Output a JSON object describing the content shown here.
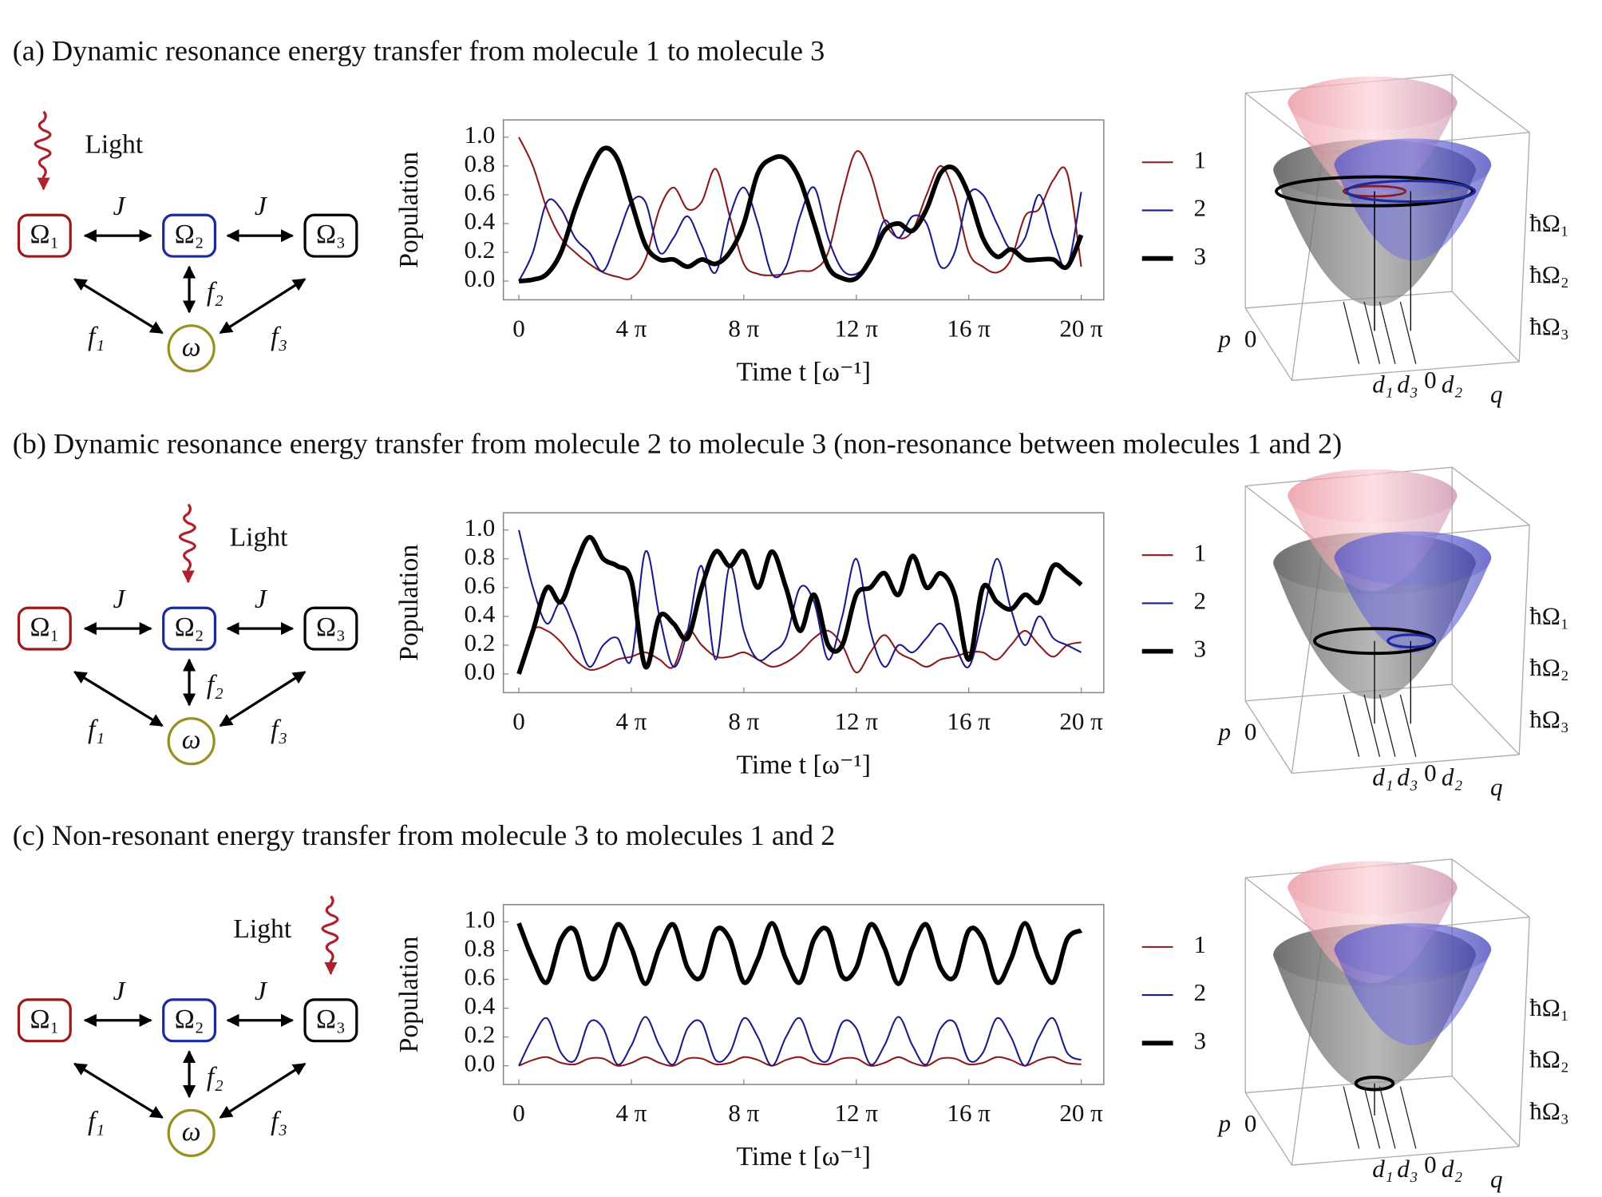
{
  "panels": [
    {
      "title": "(a) Dynamic resonance energy transfer from molecule 1 to molecule 3",
      "light": "Light",
      "nodes": [
        "Ω₁",
        "Ω₂",
        "Ω₃",
        "ω"
      ],
      "edges": [
        "J",
        "J",
        "f₁",
        "f₂",
        "f₃"
      ],
      "surface_labels": [
        "ħΩ₁",
        "ħΩ₂",
        "ħΩ₃",
        "p",
        "0",
        "d₁",
        "d₃",
        "0",
        "d₂",
        "q"
      ]
    },
    {
      "title": "(b) Dynamic resonance energy transfer from molecule 2 to molecule 3 (non-resonance between molecules 1 and 2)",
      "light": "Light",
      "nodes": [
        "Ω₁",
        "Ω₂",
        "Ω₃",
        "ω"
      ],
      "edges": [
        "J",
        "J",
        "f₁",
        "f₂",
        "f₃"
      ],
      "surface_labels": [
        "ħΩ₁",
        "ħΩ₂",
        "ħΩ₃",
        "p",
        "0",
        "d₁",
        "d₃",
        "0",
        "d₂",
        "q"
      ]
    },
    {
      "title": "(c) Non-resonant energy transfer from molecule 3 to molecules 1 and 2",
      "light": "Light",
      "nodes": [
        "Ω₁",
        "Ω₂",
        "Ω₃",
        "ω"
      ],
      "edges": [
        "J",
        "J",
        "f₁",
        "f₂",
        "f₃"
      ],
      "surface_labels": [
        "ħΩ₁",
        "ħΩ₂",
        "ħΩ₃",
        "p",
        "0",
        "d₁",
        "d₃",
        "0",
        "d₂",
        "q"
      ]
    }
  ],
  "chart_data": [
    {
      "type": "line",
      "xlabel": "Time t [ω⁻¹]",
      "ylabel": "Population",
      "x": [
        0,
        1.571,
        3.142,
        4.712,
        6.283,
        7.854,
        9.425,
        10.996,
        12.566,
        14.137,
        15.708,
        17.279,
        18.85,
        20.42,
        21.991,
        23.562,
        25.133,
        26.704,
        28.274,
        29.845,
        31.416,
        32.987,
        34.558,
        36.128,
        37.699,
        39.27,
        40.841,
        42.412,
        43.982,
        45.553,
        47.124,
        48.695,
        50.265,
        51.836,
        53.407,
        54.978,
        56.549,
        58.119,
        59.69,
        61.261,
        62.832
      ],
      "xlim": [
        -1.73,
        65.35
      ],
      "xticks": [
        0,
        {
          "value": 12.566,
          "label": "4 π"
        },
        {
          "value": 25.133,
          "label": "8 π"
        },
        {
          "value": 37.699,
          "label": "12 π"
        },
        {
          "value": 50.265,
          "label": "16 π"
        },
        {
          "value": 62.832,
          "label": "20 π"
        }
      ],
      "ylim": [
        -0.13,
        1.12
      ],
      "yticks": [
        {
          "value": 0,
          "label": "0.0"
        },
        0.2,
        0.4,
        0.6,
        0.8,
        {
          "value": 1,
          "label": "1.0"
        }
      ],
      "series": [
        {
          "name": "1",
          "color": "#8b1a1a",
          "linewidth": 1.6,
          "values": [
            1.0,
            0.8,
            0.5,
            0.3,
            0.2,
            0.12,
            0.06,
            0.03,
            0.02,
            0.15,
            0.5,
            0.65,
            0.5,
            0.55,
            0.78,
            0.45,
            0.12,
            0.05,
            0.04,
            0.05,
            0.07,
            0.08,
            0.2,
            0.6,
            0.9,
            0.75,
            0.42,
            0.3,
            0.35,
            0.6,
            0.8,
            0.6,
            0.2,
            0.1,
            0.06,
            0.15,
            0.45,
            0.5,
            0.7,
            0.75,
            0.1
          ]
        },
        {
          "name": "2",
          "color": "#1a1a8b",
          "linewidth": 1.6,
          "values": [
            0,
            0.2,
            0.55,
            0.5,
            0.3,
            0.2,
            0.07,
            0.3,
            0.55,
            0.55,
            0.2,
            0.3,
            0.45,
            0.25,
            0.06,
            0.45,
            0.65,
            0.4,
            0.05,
            0.1,
            0.45,
            0.65,
            0.3,
            0.08,
            0.05,
            0.15,
            0.42,
            0.3,
            0.45,
            0.4,
            0.1,
            0.2,
            0.6,
            0.6,
            0.4,
            0.22,
            0.3,
            0.6,
            0.3,
            0.1,
            0.62
          ]
        },
        {
          "name": "3",
          "color": "#000000",
          "linewidth": 4.5,
          "values": [
            0,
            0.01,
            0.05,
            0.2,
            0.5,
            0.75,
            0.92,
            0.85,
            0.55,
            0.25,
            0.15,
            0.15,
            0.1,
            0.15,
            0.12,
            0.2,
            0.4,
            0.75,
            0.85,
            0.85,
            0.7,
            0.4,
            0.1,
            0.02,
            0.02,
            0.15,
            0.35,
            0.4,
            0.35,
            0.5,
            0.75,
            0.78,
            0.6,
            0.3,
            0.17,
            0.22,
            0.15,
            0.15,
            0.15,
            0.1,
            0.32
          ]
        }
      ]
    },
    {
      "type": "line",
      "xlabel": "Time t [ω⁻¹]",
      "ylabel": "Population",
      "x": [
        0,
        1.571,
        3.142,
        4.712,
        6.283,
        7.854,
        9.425,
        10.996,
        12.566,
        14.137,
        15.708,
        17.279,
        18.85,
        20.42,
        21.991,
        23.562,
        25.133,
        26.704,
        28.274,
        29.845,
        31.416,
        32.987,
        34.558,
        36.128,
        37.699,
        39.27,
        40.841,
        42.412,
        43.982,
        45.553,
        47.124,
        48.695,
        50.265,
        51.836,
        53.407,
        54.978,
        56.549,
        58.119,
        59.69,
        61.261,
        62.832
      ],
      "xlim": [
        -1.73,
        65.35
      ],
      "xticks": [
        0,
        {
          "value": 12.566,
          "label": "4 π"
        },
        {
          "value": 25.133,
          "label": "8 π"
        },
        {
          "value": 37.699,
          "label": "12 π"
        },
        {
          "value": 50.265,
          "label": "16 π"
        },
        {
          "value": 62.832,
          "label": "20 π"
        }
      ],
      "ylim": [
        -0.13,
        1.12
      ],
      "yticks": [
        {
          "value": 0,
          "label": "0.0"
        },
        0.2,
        0.4,
        0.6,
        0.8,
        {
          "value": 1,
          "label": "1.0"
        }
      ],
      "series": [
        {
          "name": "1",
          "color": "#8b1a1a",
          "linewidth": 1.6,
          "values": [
            0,
            0.3,
            0.3,
            0.22,
            0.1,
            0.03,
            0.05,
            0.1,
            0.12,
            0.15,
            0.1,
            0.05,
            0.3,
            0.2,
            0.12,
            0.12,
            0.15,
            0.1,
            0.05,
            0.08,
            0.15,
            0.25,
            0.3,
            0.2,
            0.01,
            0.15,
            0.27,
            0.15,
            0.1,
            0.05,
            0.1,
            0.12,
            0.15,
            0.15,
            0.1,
            0.2,
            0.3,
            0.2,
            0.12,
            0.2,
            0.22
          ]
        },
        {
          "name": "2",
          "color": "#1a1a8b",
          "linewidth": 1.6,
          "values": [
            1.0,
            0.6,
            0.35,
            0.5,
            0.3,
            0.05,
            0.2,
            0.25,
            0.1,
            0.85,
            0.4,
            0.05,
            0.3,
            0.75,
            0.1,
            0.75,
            0.3,
            0.1,
            0.15,
            0.25,
            0.6,
            0.5,
            0.1,
            0.4,
            0.8,
            0.3,
            0.05,
            0.2,
            0.15,
            0.25,
            0.35,
            0.2,
            0.05,
            0.4,
            0.8,
            0.45,
            0.2,
            0.4,
            0.25,
            0.2,
            0.15
          ]
        },
        {
          "name": "3",
          "color": "#000000",
          "linewidth": 4.5,
          "values": [
            0,
            0.3,
            0.6,
            0.5,
            0.75,
            0.95,
            0.8,
            0.75,
            0.65,
            0.05,
            0.4,
            0.35,
            0.25,
            0.6,
            0.85,
            0.75,
            0.85,
            0.6,
            0.85,
            0.6,
            0.3,
            0.55,
            0.2,
            0.2,
            0.55,
            0.6,
            0.7,
            0.55,
            0.82,
            0.6,
            0.7,
            0.55,
            0.1,
            0.6,
            0.5,
            0.45,
            0.55,
            0.5,
            0.75,
            0.7,
            0.62
          ]
        }
      ]
    },
    {
      "type": "line",
      "xlabel": "Time t [ω⁻¹]",
      "ylabel": "Population",
      "x": [
        0,
        1.571,
        3.142,
        4.712,
        6.283,
        7.854,
        9.425,
        10.996,
        12.566,
        14.137,
        15.708,
        17.279,
        18.85,
        20.42,
        21.991,
        23.562,
        25.133,
        26.704,
        28.274,
        29.845,
        31.416,
        32.987,
        34.558,
        36.128,
        37.699,
        39.27,
        40.841,
        42.412,
        43.982,
        45.553,
        47.124,
        48.695,
        50.265,
        51.836,
        53.407,
        54.978,
        56.549,
        58.119,
        59.69,
        61.261,
        62.832
      ],
      "xlim": [
        -1.73,
        65.35
      ],
      "xticks": [
        0,
        {
          "value": 12.566,
          "label": "4 π"
        },
        {
          "value": 25.133,
          "label": "8 π"
        },
        {
          "value": 37.699,
          "label": "12 π"
        },
        {
          "value": 50.265,
          "label": "16 π"
        },
        {
          "value": 62.832,
          "label": "20 π"
        }
      ],
      "ylim": [
        -0.13,
        1.12
      ],
      "yticks": [
        {
          "value": 0,
          "label": "0.0"
        },
        0.2,
        0.4,
        0.6,
        0.8,
        {
          "value": 1,
          "label": "1.0"
        }
      ],
      "series": [
        {
          "name": "1",
          "color": "#8b1a1a",
          "linewidth": 1.6,
          "values": [
            0,
            0.04,
            0.06,
            0.02,
            0.01,
            0.05,
            0.05,
            0,
            0.02,
            0.06,
            0.02,
            0,
            0.05,
            0.05,
            0.01,
            0.02,
            0.06,
            0.04,
            0,
            0.04,
            0.06,
            0.02,
            0.01,
            0.05,
            0.05,
            0,
            0.02,
            0.06,
            0.02,
            0,
            0.05,
            0.05,
            0.01,
            0.02,
            0.06,
            0.04,
            0,
            0.04,
            0.06,
            0.02,
            0.01
          ]
        },
        {
          "name": "2",
          "color": "#1a1a8b",
          "linewidth": 1.6,
          "values": [
            0,
            0.2,
            0.33,
            0.09,
            0.04,
            0.3,
            0.26,
            0.01,
            0.14,
            0.34,
            0.14,
            0.01,
            0.26,
            0.3,
            0.04,
            0.09,
            0.33,
            0.2,
            0,
            0.2,
            0.33,
            0.09,
            0.04,
            0.3,
            0.26,
            0.01,
            0.14,
            0.34,
            0.14,
            0.01,
            0.26,
            0.3,
            0.04,
            0.09,
            0.33,
            0.2,
            0,
            0.2,
            0.33,
            0.09,
            0.04
          ]
        },
        {
          "name": "3",
          "color": "#000000",
          "linewidth": 4.5,
          "values": [
            0.99,
            0.74,
            0.58,
            0.88,
            0.94,
            0.62,
            0.68,
            0.98,
            0.82,
            0.57,
            0.82,
            0.98,
            0.68,
            0.62,
            0.94,
            0.88,
            0.58,
            0.74,
            0.99,
            0.74,
            0.58,
            0.88,
            0.94,
            0.62,
            0.68,
            0.98,
            0.82,
            0.57,
            0.82,
            0.98,
            0.68,
            0.62,
            0.94,
            0.88,
            0.58,
            0.74,
            0.99,
            0.74,
            0.58,
            0.88,
            0.94
          ]
        }
      ]
    }
  ]
}
